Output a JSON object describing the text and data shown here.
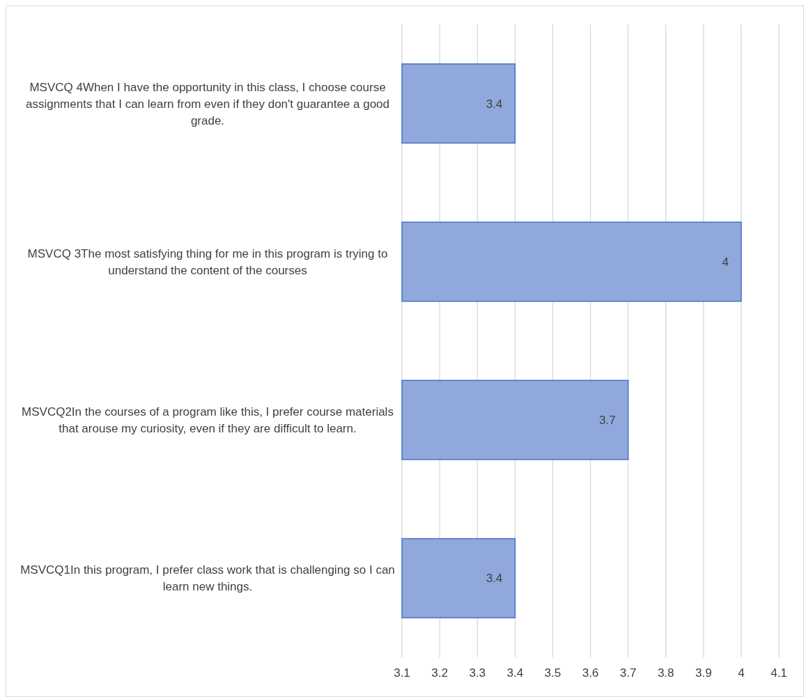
{
  "chart_data": {
    "type": "bar",
    "orientation": "horizontal",
    "categories": [
      "MSVCQ 4When I have the opportunity in this class, I choose course assignments that I can learn from even if they don't guarantee a good grade.",
      "MSVCQ 3The most satisfying thing for me in this program is trying to understand the content of the courses",
      "MSVCQ2In the courses of a program like this, I prefer course materials that arouse my curiosity, even if they are difficult to learn.",
      "MSVCQ1In this program, I prefer class work that is challenging so I can learn new things."
    ],
    "values": [
      3.4,
      4,
      3.7,
      3.4
    ],
    "color": "#91a8dc",
    "xlim": [
      3.1,
      4.1
    ],
    "xticks": [
      3.1,
      3.2,
      3.3,
      3.4,
      3.5,
      3.6,
      3.7,
      3.8,
      3.9,
      4,
      4.1
    ],
    "grid": "x",
    "data_labels": true
  }
}
